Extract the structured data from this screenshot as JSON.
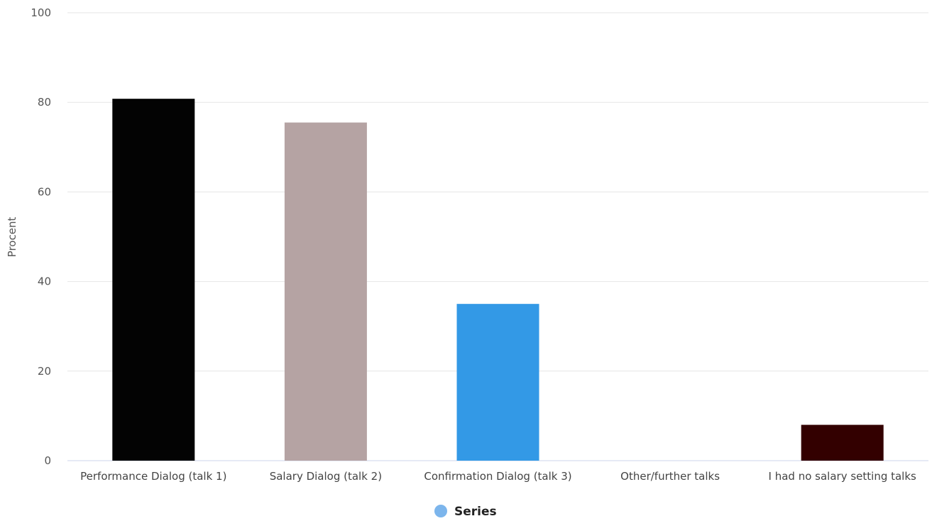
{
  "chart_data": {
    "type": "bar",
    "title": "",
    "xlabel": "",
    "ylabel": "Procent",
    "ylim": [
      0,
      100
    ],
    "yticks": [
      0,
      20,
      40,
      60,
      80,
      100
    ],
    "grid": true,
    "legend_position": "bottom-center",
    "categories": [
      "Performance Dialog (talk 1)",
      "Salary Dialog (talk 2)",
      "Confirmation Dialog (talk 3)",
      "Other/further talks",
      "I had no salary setting talks"
    ],
    "series": [
      {
        "name": "Series",
        "legend_color": "#7cb5ec",
        "values": [
          80.8,
          75.5,
          35.0,
          0,
          8.0
        ],
        "colors": [
          "#030303",
          "#b5a3a3",
          "#3399e6",
          "#7cb5ec",
          "#330000"
        ]
      }
    ]
  }
}
